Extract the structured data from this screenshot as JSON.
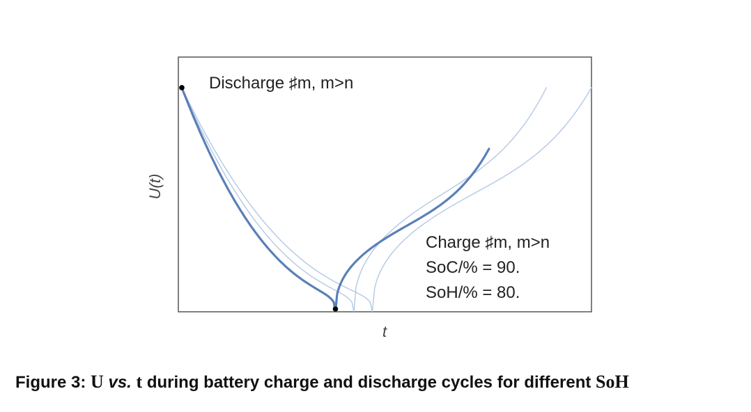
{
  "figure": {
    "caption": {
      "prefix": "Figure 3: ",
      "var_u": "U",
      "vs": "vs.",
      "var_t": "t",
      "middle": " during battery charge and discharge cycles for different ",
      "soh": "SoH"
    }
  },
  "chart_data": {
    "type": "line",
    "xlabel": "t",
    "ylabel": "U(t)",
    "grid": false,
    "legend": "none",
    "annotations": {
      "discharge": "Discharge ♯m, m>n",
      "charge_line1": "Charge ♯m, m>n",
      "charge_line2": "SoC/% = 90.",
      "charge_line3": "SoH/% = 80."
    },
    "colors": {
      "highlight": "#5a7fb8",
      "faded": "#b4c8e4",
      "frame": "#555555",
      "marker": "#000000"
    },
    "start_point": {
      "x": 0.0,
      "y": 0.88
    },
    "series": [
      {
        "highlight": true,
        "discharge_end": 0.375,
        "charge_end": 0.75,
        "charge_end_y": 0.64
      },
      {
        "highlight": false,
        "discharge_end": 0.42,
        "charge_end": 0.89,
        "charge_end_y": 0.88
      },
      {
        "highlight": false,
        "discharge_end": 0.465,
        "charge_end": 1.0,
        "charge_end_y": 0.88
      }
    ],
    "xlim": [
      0,
      1.0
    ],
    "ylim": [
      0,
      1.0
    ]
  }
}
